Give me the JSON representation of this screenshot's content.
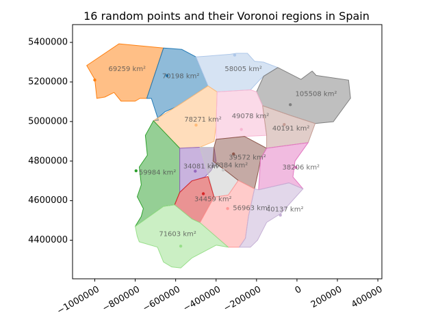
{
  "chart_data": {
    "type": "map",
    "title": "16 random points and their Voronoi regions in Spain",
    "xlabel": "",
    "ylabel": "",
    "xlim": [
      -1110000,
      420000
    ],
    "ylim": [
      4205000,
      5490000
    ],
    "x_ticks": [
      -1000000,
      -800000,
      -600000,
      -400000,
      -200000,
      0,
      200000,
      400000
    ],
    "x_tick_labels": [
      "−1000000",
      "−800000",
      "−600000",
      "−400000",
      "−200000",
      "0",
      "200000",
      "400000"
    ],
    "y_ticks": [
      4400000,
      4600000,
      4800000,
      5000000,
      5200000,
      5400000
    ],
    "y_tick_labels": [
      "4400000",
      "4600000",
      "4800000",
      "5000000",
      "5200000",
      "5400000"
    ],
    "grid": false,
    "legend": "none",
    "regions": [
      {
        "area_label": "69259 km²",
        "color": "#ff7f0e",
        "point": [
          -1000000,
          5210000
        ],
        "label_at": [
          -840000,
          5266000
        ],
        "polygon": [
          [
            -1040000,
            5283000
          ],
          [
            -880000,
            5393000
          ],
          [
            -660000,
            5372000
          ],
          [
            -743000,
            5117000
          ],
          [
            -777000,
            5117000
          ],
          [
            -800000,
            5103000
          ],
          [
            -870000,
            5103000
          ],
          [
            -905000,
            5147000
          ],
          [
            -950000,
            5124000
          ],
          [
            -990000,
            5117000
          ],
          [
            -1000000,
            5213000
          ]
        ]
      },
      {
        "area_label": "70198 km²",
        "color": "#1f77b4",
        "point": [
          -643000,
          5232000
        ],
        "label_at": [
          -575000,
          5230000
        ],
        "polygon": [
          [
            -660000,
            5372000
          ],
          [
            -570000,
            5365000
          ],
          [
            -500000,
            5327000
          ],
          [
            -440000,
            5180000
          ],
          [
            -600000,
            5073000
          ],
          [
            -652000,
            5050000
          ],
          [
            -688000,
            5018000
          ],
          [
            -710000,
            5004000
          ],
          [
            -685000,
            5006000
          ],
          [
            -720000,
            5117000
          ],
          [
            -743000,
            5117000
          ]
        ]
      },
      {
        "area_label": "58005 km²",
        "color": "#aec7e8",
        "point": [
          -308000,
          5336000
        ],
        "label_at": [
          -265000,
          5265000
        ],
        "polygon": [
          [
            -500000,
            5327000
          ],
          [
            -440000,
            5180000
          ],
          [
            -395000,
            5150000
          ],
          [
            -230000,
            5160000
          ],
          [
            -185000,
            5210000
          ],
          [
            -165000,
            5229000
          ],
          [
            -95000,
            5273000
          ],
          [
            -165000,
            5300000
          ],
          [
            -210000,
            5305000
          ],
          [
            -245000,
            5345000
          ],
          [
            -300000,
            5345000
          ],
          [
            -330000,
            5340000
          ],
          [
            -450000,
            5330000
          ]
        ]
      },
      {
        "area_label": "105508 km²",
        "color": "#7f7f7f",
        "point": [
          -33000,
          5085000
        ],
        "label_at": [
          95000,
          5140000
        ],
        "polygon": [
          [
            -95000,
            5273000
          ],
          [
            -165000,
            5229000
          ],
          [
            -200000,
            5150000
          ],
          [
            -170000,
            5080000
          ],
          [
            -30000,
            5030000
          ],
          [
            90000,
            4990000
          ],
          [
            180000,
            4999000
          ],
          [
            265000,
            5118000
          ],
          [
            255000,
            5209000
          ],
          [
            95000,
            5233000
          ],
          [
            75000,
            5255000
          ],
          [
            20000,
            5213000
          ]
        ]
      },
      {
        "area_label": "78271 km²",
        "color": "#ffbb78",
        "point": [
          -499000,
          4982000
        ],
        "label_at": [
          -465000,
          5010000
        ],
        "polygon": [
          [
            -710000,
            5004000
          ],
          [
            -600000,
            5073000
          ],
          [
            -440000,
            5180000
          ],
          [
            -395000,
            5150000
          ],
          [
            -400000,
            4980000
          ],
          [
            -410000,
            4900000
          ],
          [
            -480000,
            4870000
          ],
          [
            -580000,
            4865000
          ]
        ]
      },
      {
        "area_label": "49078 km²",
        "color": "#f7b6d2",
        "point": [
          -275000,
          4960000
        ],
        "label_at": [
          -230000,
          5027000
        ],
        "polygon": [
          [
            -395000,
            5150000
          ],
          [
            -230000,
            5160000
          ],
          [
            -200000,
            5150000
          ],
          [
            -170000,
            5080000
          ],
          [
            -150000,
            4930000
          ],
          [
            -260000,
            4925000
          ],
          [
            -400000,
            4910000
          ],
          [
            -400000,
            4980000
          ]
        ]
      },
      {
        "area_label": "40191 km²",
        "color": "#c49c94",
        "point": [
          -63000,
          4985000
        ],
        "label_at": [
          -30000,
          4965000
        ],
        "polygon": [
          [
            -170000,
            5080000
          ],
          [
            -30000,
            5030000
          ],
          [
            90000,
            4990000
          ],
          [
            55000,
            4893000
          ],
          [
            -150000,
            4865000
          ],
          [
            -150000,
            4930000
          ]
        ]
      },
      {
        "area_label": "59984 km²",
        "color": "#2ca02c",
        "point": [
          -796000,
          4751000
        ],
        "label_at": [
          -690000,
          4742000
        ],
        "polygon": [
          [
            -710000,
            5004000
          ],
          [
            -580000,
            4865000
          ],
          [
            -580000,
            4642000
          ],
          [
            -605000,
            4579000
          ],
          [
            -660000,
            4571000
          ],
          [
            -800000,
            4470000
          ],
          [
            -770000,
            4520000
          ],
          [
            -760000,
            4560000
          ],
          [
            -790000,
            4620000
          ],
          [
            -770000,
            4680000
          ],
          [
            -780000,
            4770000
          ],
          [
            -740000,
            4830000
          ],
          [
            -750000,
            4930000
          ]
        ]
      },
      {
        "area_label": "34081 km²",
        "color": "#9467bd",
        "point": [
          -503000,
          4749000
        ],
        "label_at": [
          -470000,
          4774000
        ],
        "polygon": [
          [
            -580000,
            4865000
          ],
          [
            -480000,
            4870000
          ],
          [
            -410000,
            4870000
          ],
          [
            -400000,
            4800000
          ],
          [
            -425000,
            4752000
          ],
          [
            -455000,
            4720000
          ],
          [
            -520000,
            4700000
          ],
          [
            -580000,
            4642000
          ]
        ]
      },
      {
        "area_label": "16384 km²",
        "color": "#c7c7c7",
        "point": [
          -365000,
          4755000
        ],
        "label_at": [
          -335000,
          4778000
        ],
        "polygon": [
          [
            -480000,
            4870000
          ],
          [
            -410000,
            4870000
          ],
          [
            -415000,
            4800000
          ],
          [
            -350000,
            4750000
          ],
          [
            -290000,
            4702000
          ],
          [
            -340000,
            4628000
          ],
          [
            -410000,
            4618000
          ],
          [
            -435000,
            4720000
          ]
        ]
      },
      {
        "area_label": "39572 km²",
        "color": "#8c564b",
        "point": [
          -314000,
          4836000
        ],
        "label_at": [
          -245000,
          4819000
        ],
        "polygon": [
          [
            -410000,
            4870000
          ],
          [
            -400000,
            4910000
          ],
          [
            -260000,
            4925000
          ],
          [
            -150000,
            4865000
          ],
          [
            -180000,
            4810000
          ],
          [
            -190000,
            4755000
          ],
          [
            -210000,
            4660000
          ],
          [
            -290000,
            4702000
          ],
          [
            -350000,
            4750000
          ],
          [
            -415000,
            4800000
          ]
        ]
      },
      {
        "area_label": "38206 km²",
        "color": "#e377c2",
        "point": [
          -5000,
          4768000
        ],
        "label_at": [
          20000,
          4768000
        ],
        "polygon": [
          [
            -150000,
            4865000
          ],
          [
            55000,
            4893000
          ],
          [
            -10000,
            4800000
          ],
          [
            -20000,
            4720000
          ],
          [
            30000,
            4660000
          ],
          [
            -40000,
            4690000
          ],
          [
            -190000,
            4655000
          ],
          [
            -180000,
            4810000
          ]
        ]
      },
      {
        "area_label": "34459 km²",
        "color": "#d62728",
        "point": [
          -463000,
          4635000
        ],
        "label_at": [
          -415000,
          4608000
        ],
        "polygon": [
          [
            -580000,
            4642000
          ],
          [
            -520000,
            4700000
          ],
          [
            -440000,
            4722000
          ],
          [
            -410000,
            4618000
          ],
          [
            -480000,
            4489000
          ],
          [
            -520000,
            4508000
          ],
          [
            -605000,
            4579000
          ]
        ]
      },
      {
        "area_label": "56963 km²",
        "color": "#ff9896",
        "point": [
          -343000,
          4560000
        ],
        "label_at": [
          -225000,
          4562000
        ],
        "polygon": [
          [
            -410000,
            4618000
          ],
          [
            -340000,
            4628000
          ],
          [
            -290000,
            4702000
          ],
          [
            -210000,
            4660000
          ],
          [
            -240000,
            4520000
          ],
          [
            -255000,
            4410000
          ],
          [
            -285000,
            4365000
          ],
          [
            -340000,
            4365000
          ],
          [
            -480000,
            4489000
          ]
        ]
      },
      {
        "area_label": "40137 km²",
        "color": "#c5b0d5",
        "point": [
          -82000,
          4527000
        ],
        "label_at": [
          -60000,
          4555000
        ],
        "polygon": [
          [
            -210000,
            4660000
          ],
          [
            -190000,
            4655000
          ],
          [
            -40000,
            4690000
          ],
          [
            30000,
            4660000
          ],
          [
            -80000,
            4535000
          ],
          [
            -150000,
            4490000
          ],
          [
            -195000,
            4400000
          ],
          [
            -230000,
            4365000
          ],
          [
            -285000,
            4365000
          ],
          [
            -255000,
            4410000
          ],
          [
            -240000,
            4520000
          ]
        ]
      },
      {
        "area_label": "71603 km²",
        "color": "#98df8a",
        "point": [
          -575000,
          4370000
        ],
        "label_at": [
          -590000,
          4432000
        ],
        "polygon": [
          [
            -800000,
            4470000
          ],
          [
            -660000,
            4571000
          ],
          [
            -605000,
            4579000
          ],
          [
            -520000,
            4508000
          ],
          [
            -480000,
            4489000
          ],
          [
            -340000,
            4365000
          ],
          [
            -400000,
            4375000
          ],
          [
            -520000,
            4310000
          ],
          [
            -575000,
            4260000
          ],
          [
            -620000,
            4265000
          ],
          [
            -660000,
            4290000
          ],
          [
            -690000,
            4365000
          ],
          [
            -780000,
            4392000
          ],
          [
            -790000,
            4420000
          ]
        ]
      }
    ]
  }
}
